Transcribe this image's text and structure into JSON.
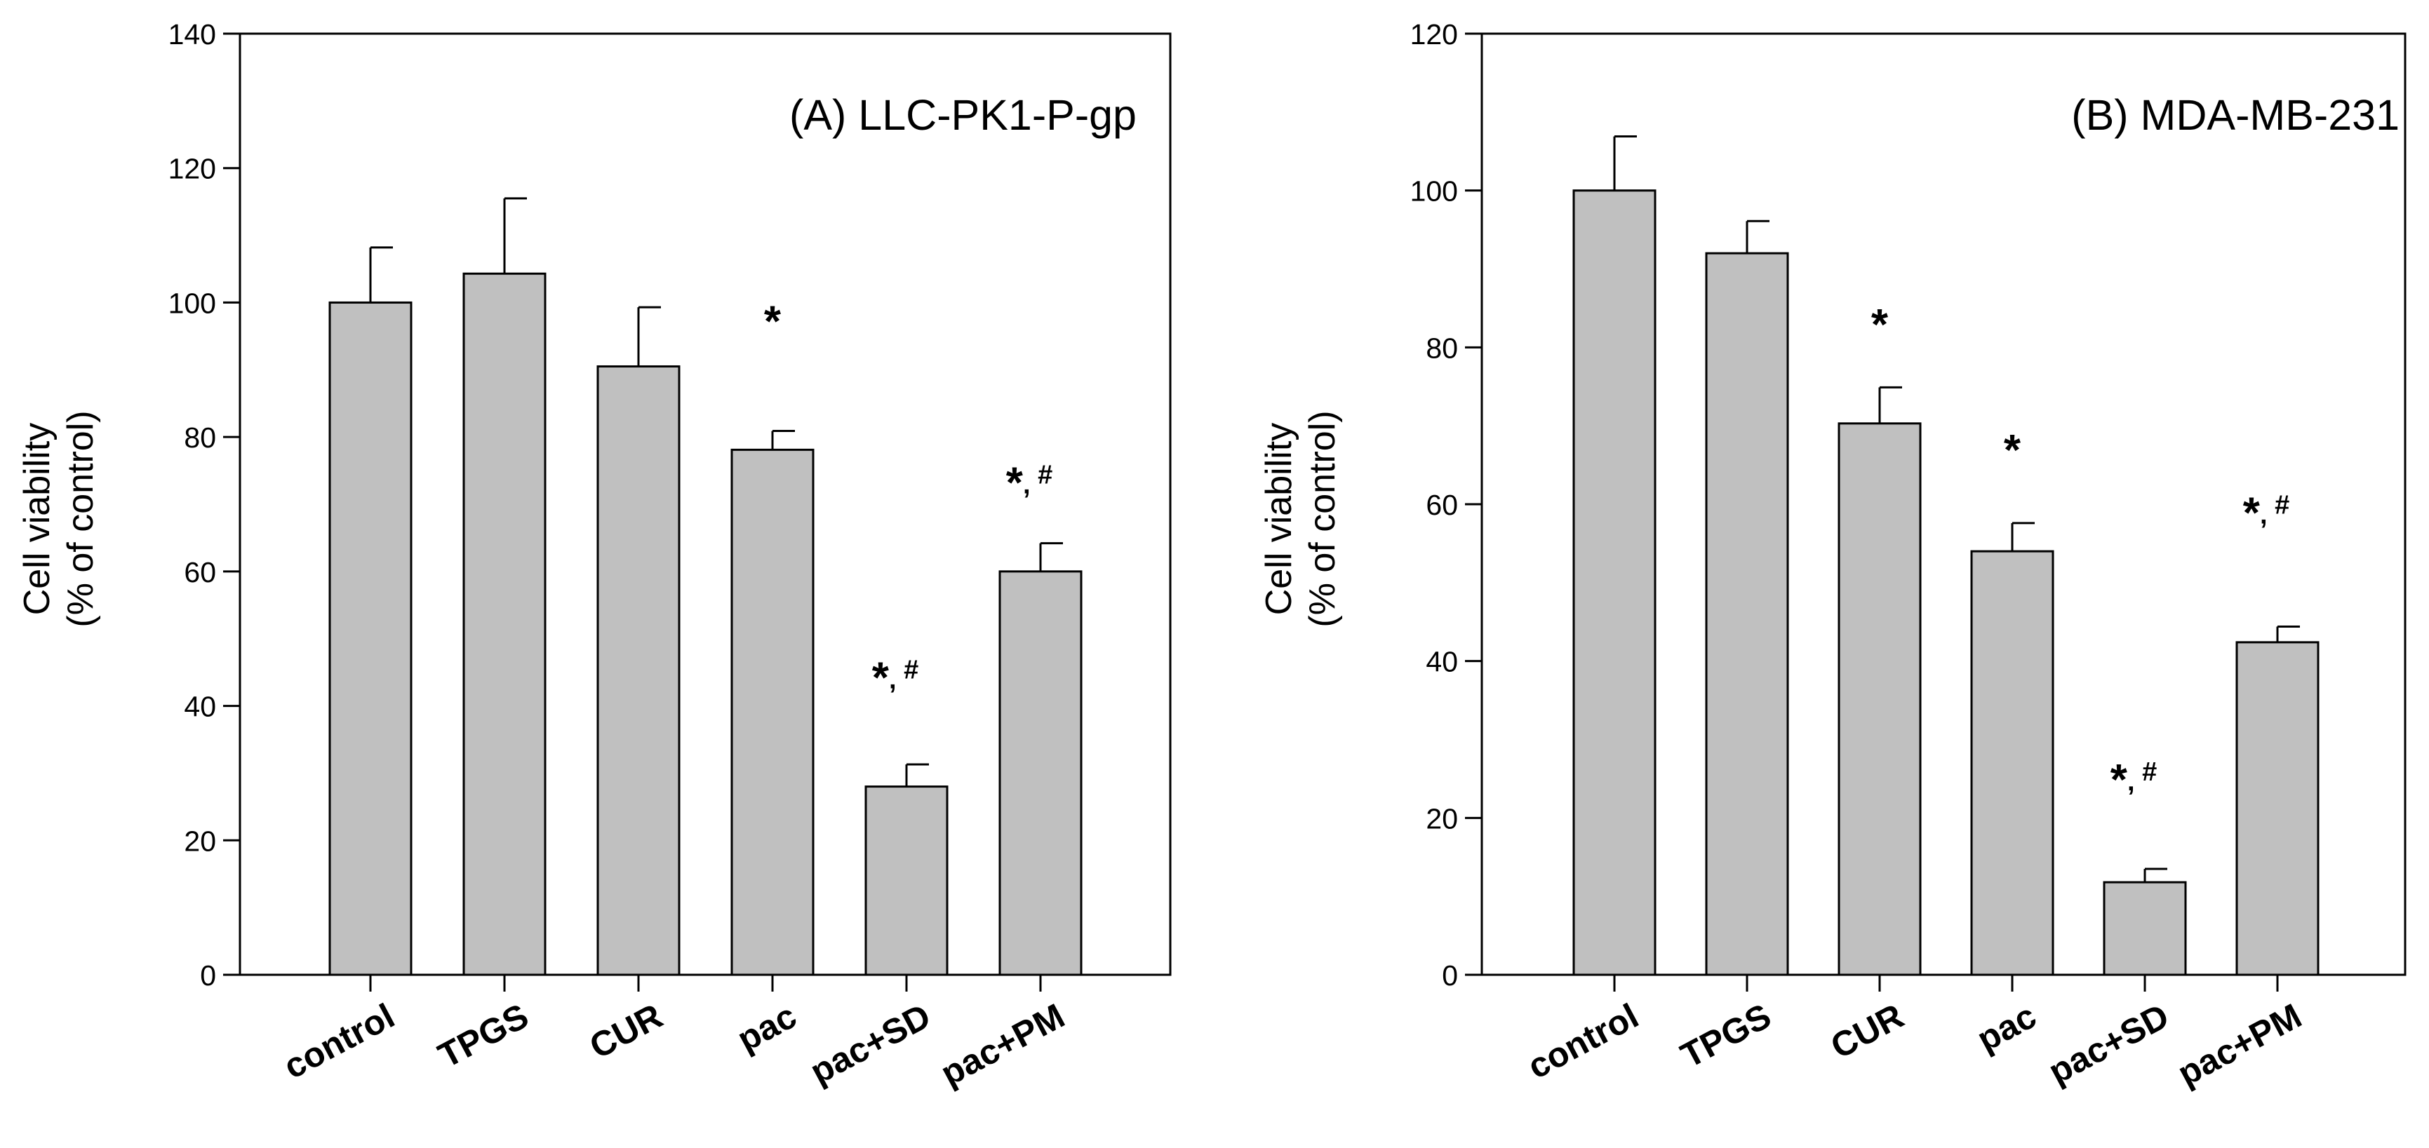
{
  "chart_data": [
    {
      "type": "bar",
      "title": "(A) LLC-PK1-P-gp",
      "ylabel": "Cell viability\n(% of control)",
      "xlabel": "",
      "categories": [
        "control",
        "TPGS",
        "CUR",
        "pac",
        "pac+SD",
        "pac+PM"
      ],
      "values": [
        100,
        104.3,
        90.5,
        78.1,
        28,
        60
      ],
      "errors": [
        8.2,
        11.2,
        8.8,
        2.8,
        3.3,
        4.2
      ],
      "significance": [
        "",
        "",
        "",
        "*",
        "*, #",
        "*, #"
      ],
      "ylim": [
        0,
        140
      ],
      "yticks": [
        0,
        20,
        40,
        60,
        80,
        100,
        120,
        140
      ],
      "annotation_y": [
        null,
        null,
        null,
        95,
        42,
        71
      ]
    },
    {
      "type": "bar",
      "title": "(B) MDA-MB-231",
      "ylabel": "Cell viability\n(% of control)",
      "xlabel": "",
      "categories": [
        "control",
        "TPGS",
        "CUR",
        "pac",
        "pac+SD",
        "pac+PM"
      ],
      "values": [
        100,
        92,
        70.3,
        54,
        11.8,
        42.4
      ],
      "errors": [
        6.9,
        4.1,
        4.6,
        3.6,
        1.7,
        2
      ],
      "significance": [
        "",
        "",
        "*",
        "*",
        "*, #",
        "*, #"
      ],
      "ylim": [
        0,
        120
      ],
      "yticks": [
        0,
        20,
        40,
        60,
        80,
        100,
        120
      ],
      "annotation_y": [
        null,
        null,
        81,
        65,
        23,
        57
      ]
    }
  ]
}
